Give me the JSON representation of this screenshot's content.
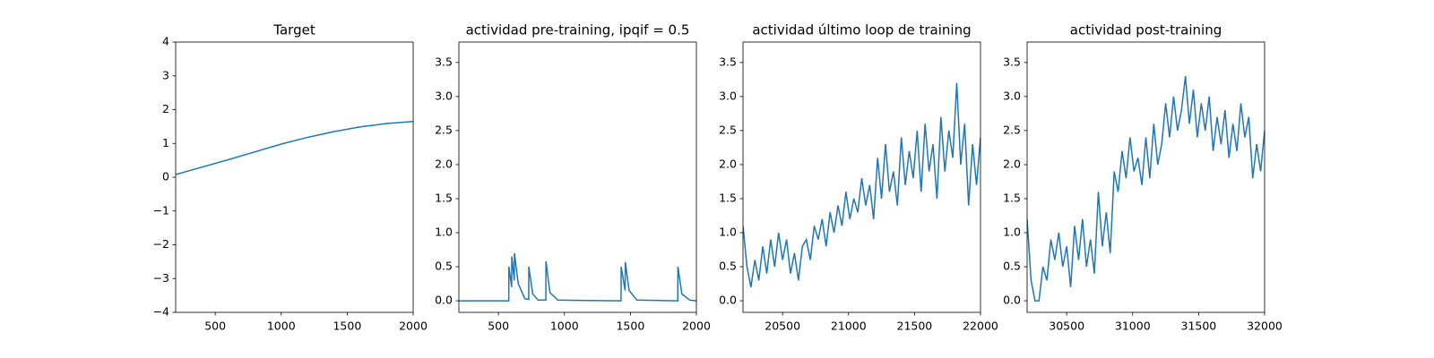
{
  "chart_data": [
    {
      "type": "line",
      "title": "Target",
      "x": [
        200,
        400,
        600,
        800,
        1000,
        1200,
        1400,
        1600,
        1800,
        2000
      ],
      "values": [
        0.08,
        0.3,
        0.52,
        0.75,
        0.98,
        1.18,
        1.35,
        1.49,
        1.59,
        1.65
      ],
      "color": "#1f77b4",
      "xlim": [
        200,
        2000
      ],
      "xticks": [
        500,
        1000,
        1500,
        2000
      ],
      "ylim": [
        -4,
        4
      ],
      "yticks": [
        {
          "value": -4,
          "label": "−4"
        },
        {
          "value": -3,
          "label": "−3"
        },
        {
          "value": -2,
          "label": "−2"
        },
        {
          "value": -1,
          "label": "−1"
        },
        0,
        1,
        2,
        3,
        4
      ]
    },
    {
      "type": "line",
      "title": "actividad pre-training, ipqif = 0.5",
      "x": [
        200,
        578,
        579,
        600,
        601,
        620,
        621,
        650,
        700,
        729,
        730,
        760,
        800,
        859,
        860,
        890,
        950,
        1429,
        1430,
        1460,
        1461,
        1490,
        1550,
        1859,
        1860,
        1890,
        1950,
        2000
      ],
      "values": [
        0,
        0,
        0.5,
        0.2,
        0.65,
        0.3,
        0.7,
        0.25,
        0.03,
        0.02,
        0.5,
        0.1,
        0.01,
        0.01,
        0.58,
        0.12,
        0.01,
        0,
        0.5,
        0.15,
        0.57,
        0.15,
        0.01,
        0,
        0.5,
        0.1,
        0.01,
        0
      ],
      "color": "#1f77b4",
      "xlim": [
        200,
        2000
      ],
      "xticks": [
        500,
        1000,
        1500,
        2000
      ],
      "ylim": [
        -0.17,
        3.8
      ],
      "yticks": [
        {
          "value": 0,
          "label": "0.0"
        },
        0.5,
        {
          "value": 1,
          "label": "1.0"
        },
        1.5,
        {
          "value": 2,
          "label": "2.0"
        },
        2.5,
        {
          "value": 3,
          "label": "3.0"
        },
        3.5
      ]
    },
    {
      "type": "line",
      "title": "actividad último loop de training",
      "x": [
        20200,
        20230,
        20260,
        20290,
        20320,
        20350,
        20380,
        20410,
        20440,
        20470,
        20500,
        20530,
        20560,
        20590,
        20620,
        20650,
        20680,
        20710,
        20740,
        20770,
        20800,
        20830,
        20860,
        20890,
        20920,
        20950,
        20980,
        21010,
        21040,
        21070,
        21100,
        21130,
        21160,
        21190,
        21220,
        21250,
        21280,
        21310,
        21340,
        21370,
        21400,
        21430,
        21460,
        21490,
        21520,
        21550,
        21580,
        21610,
        21640,
        21670,
        21700,
        21730,
        21760,
        21790,
        21820,
        21850,
        21880,
        21910,
        21940,
        21970,
        22000
      ],
      "values": [
        1.1,
        0.5,
        0.2,
        0.6,
        0.3,
        0.8,
        0.4,
        0.9,
        0.5,
        1.0,
        0.6,
        0.9,
        0.4,
        0.7,
        0.3,
        0.8,
        0.9,
        0.6,
        1.1,
        0.9,
        1.2,
        0.8,
        1.3,
        1.0,
        1.4,
        1.1,
        1.6,
        1.2,
        1.5,
        1.3,
        1.8,
        1.4,
        1.7,
        1.2,
        2.1,
        1.5,
        2.3,
        1.6,
        1.9,
        1.4,
        2.4,
        1.7,
        2.2,
        1.8,
        2.5,
        1.6,
        2.6,
        1.9,
        2.3,
        1.5,
        2.7,
        1.9,
        2.5,
        2.1,
        3.2,
        2.0,
        2.6,
        1.4,
        2.3,
        1.7,
        2.4
      ],
      "color": "#1f77b4",
      "xlim": [
        20200,
        22000
      ],
      "xticks": [
        20500,
        21000,
        21500,
        22000
      ],
      "ylim": [
        -0.17,
        3.8
      ],
      "yticks": [
        {
          "value": 0,
          "label": "0.0"
        },
        0.5,
        {
          "value": 1,
          "label": "1.0"
        },
        1.5,
        {
          "value": 2,
          "label": "2.0"
        },
        2.5,
        {
          "value": 3,
          "label": "3.0"
        },
        3.5
      ]
    },
    {
      "type": "line",
      "title": "actividad post-training",
      "x": [
        30200,
        30230,
        30260,
        30290,
        30320,
        30350,
        30380,
        30410,
        30440,
        30470,
        30500,
        30530,
        30560,
        30590,
        30620,
        30650,
        30680,
        30710,
        30740,
        30770,
        30800,
        30830,
        30860,
        30890,
        30920,
        30950,
        30980,
        31010,
        31040,
        31070,
        31100,
        31130,
        31160,
        31190,
        31220,
        31250,
        31280,
        31310,
        31340,
        31370,
        31400,
        31430,
        31460,
        31490,
        31520,
        31550,
        31580,
        31610,
        31640,
        31670,
        31700,
        31730,
        31760,
        31790,
        31820,
        31850,
        31880,
        31910,
        31940,
        31970,
        32000
      ],
      "values": [
        1.2,
        0.3,
        0.0,
        0.0,
        0.5,
        0.3,
        0.9,
        0.6,
        1.0,
        0.5,
        0.8,
        0.2,
        1.1,
        0.6,
        1.2,
        0.5,
        0.9,
        0.4,
        1.6,
        0.8,
        1.3,
        0.7,
        1.9,
        1.6,
        2.2,
        1.8,
        2.4,
        1.9,
        2.1,
        1.7,
        2.4,
        1.8,
        2.6,
        2.0,
        2.3,
        2.9,
        2.4,
        3.0,
        2.5,
        2.8,
        3.3,
        2.6,
        3.1,
        2.4,
        2.9,
        2.5,
        3.0,
        2.2,
        2.7,
        2.3,
        2.8,
        2.1,
        2.6,
        2.2,
        2.9,
        2.4,
        2.7,
        1.8,
        2.3,
        1.9,
        2.5
      ],
      "color": "#1f77b4",
      "xlim": [
        30200,
        32000
      ],
      "xticks": [
        30500,
        31000,
        31500,
        32000
      ],
      "ylim": [
        -0.17,
        3.8
      ],
      "yticks": [
        {
          "value": 0,
          "label": "0.0"
        },
        0.5,
        {
          "value": 1,
          "label": "1.0"
        },
        1.5,
        {
          "value": 2,
          "label": "2.0"
        },
        2.5,
        {
          "value": 3,
          "label": "3.0"
        },
        3.5
      ]
    }
  ]
}
